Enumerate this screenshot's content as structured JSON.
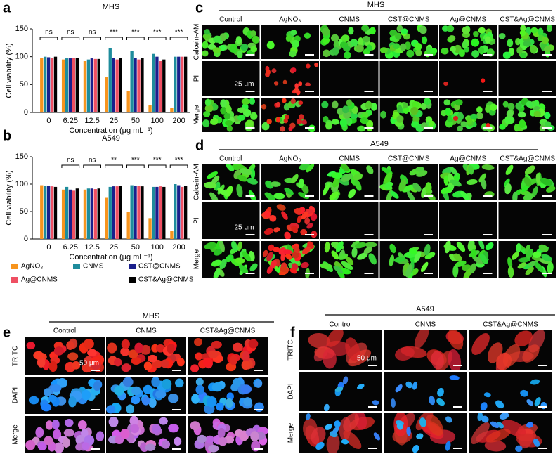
{
  "chart_data": [
    {
      "type": "bar",
      "panel": "a",
      "title": "MHS",
      "ylabel": "Cell viability (%)",
      "xlabel": "Concentration (μg mL⁻¹)",
      "categories": [
        "0",
        "6.25",
        "12.5",
        "25",
        "50",
        "100",
        "200"
      ],
      "ylim": [
        0,
        150
      ],
      "yticks": [
        0,
        50,
        100,
        150
      ],
      "significance": [
        "ns",
        "ns",
        "ns",
        "***",
        "***",
        "***",
        "***"
      ],
      "series": [
        {
          "name": "AgNO₃",
          "color": "#f7941d",
          "values": [
            98,
            95,
            92,
            63,
            38,
            13,
            8
          ]
        },
        {
          "name": "CNMS",
          "color": "#1e8c9c",
          "values": [
            100,
            97,
            95,
            115,
            110,
            105,
            100
          ]
        },
        {
          "name": "CST@CNMS",
          "color": "#1a1f8c",
          "values": [
            99,
            97,
            97,
            98,
            98,
            100,
            100
          ]
        },
        {
          "name": "Ag@CNMS",
          "color": "#ef4f63",
          "values": [
            98,
            98,
            96,
            95,
            95,
            92,
            100
          ]
        },
        {
          "name": "CST&Ag@CNMS",
          "color": "#000000",
          "values": [
            100,
            98,
            96,
            98,
            98,
            95,
            100
          ]
        }
      ]
    },
    {
      "type": "bar",
      "panel": "b",
      "title": "A549",
      "ylabel": "Cell viability (%)",
      "xlabel": "Concentration (μg mL⁻¹)",
      "categories": [
        "0",
        "6.25",
        "12.5",
        "25",
        "50",
        "100",
        "200"
      ],
      "ylim": [
        0,
        150
      ],
      "yticks": [
        0,
        50,
        100,
        150
      ],
      "significance": [
        null,
        "ns",
        "ns",
        "**",
        "***",
        "***",
        "***"
      ],
      "series": [
        {
          "color": "#f7941d",
          "values": [
            98,
            90,
            90,
            75,
            50,
            38,
            15
          ]
        },
        {
          "color": "#1e8c9c",
          "values": [
            97,
            95,
            92,
            95,
            98,
            95,
            100
          ]
        },
        {
          "color": "#1a1f8c",
          "values": [
            97,
            90,
            92,
            96,
            97,
            95,
            98
          ]
        },
        {
          "color": "#ef4f63",
          "values": [
            96,
            88,
            91,
            96,
            97,
            96,
            95
          ]
        },
        {
          "color": "#000000",
          "values": [
            95,
            92,
            92,
            97,
            96,
            95,
            97
          ]
        }
      ]
    }
  ],
  "image_panels": [
    {
      "label": "c",
      "title": "MHS",
      "columns": [
        "Control",
        "AgNO₃",
        "CNMS",
        "CST@CNMS",
        "Ag@CNMS",
        "CST&Ag@CNMS"
      ],
      "rows": [
        "Calcein-AM",
        "PI",
        "Merge"
      ],
      "scale_label": "25 μm"
    },
    {
      "label": "d",
      "title": "A549",
      "columns": [
        "Control",
        "AgNO₃",
        "CNMS",
        "CST@CNMS",
        "Ag@CNMS",
        "CST&Ag@CNMS"
      ],
      "rows": [
        "Calcein-AM",
        "PI",
        "Merge"
      ],
      "scale_label": "25 μm"
    },
    {
      "label": "e",
      "title": "MHS",
      "columns": [
        "Control",
        "CNMS",
        "CST&Ag@CNMS"
      ],
      "rows": [
        "TRITC",
        "DAPI",
        "Merge"
      ],
      "scale_label": "50 μm"
    },
    {
      "label": "f",
      "title": "A549",
      "columns": [
        "Control",
        "CNMS",
        "CST&Ag@CNMS"
      ],
      "rows": [
        "TRITC",
        "DAPI",
        "Merge"
      ],
      "scale_label": "50 μm"
    }
  ]
}
